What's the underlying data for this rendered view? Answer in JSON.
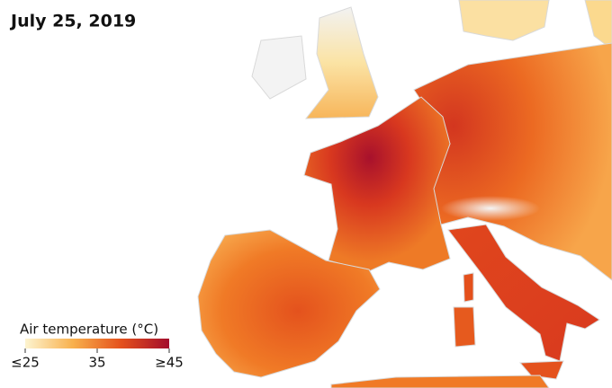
{
  "title": "July 25, 2019",
  "legend": {
    "title": "Air temperature (°C)",
    "range": [
      25,
      45
    ],
    "ticks": [
      {
        "value": 25,
        "label": "≤25"
      },
      35,
      {
        "value": 45,
        "label": "≥45"
      }
    ],
    "colors": [
      "#fdf4d0",
      "#f8b04c",
      "#e4501c",
      "#a30d2c"
    ]
  }
}
